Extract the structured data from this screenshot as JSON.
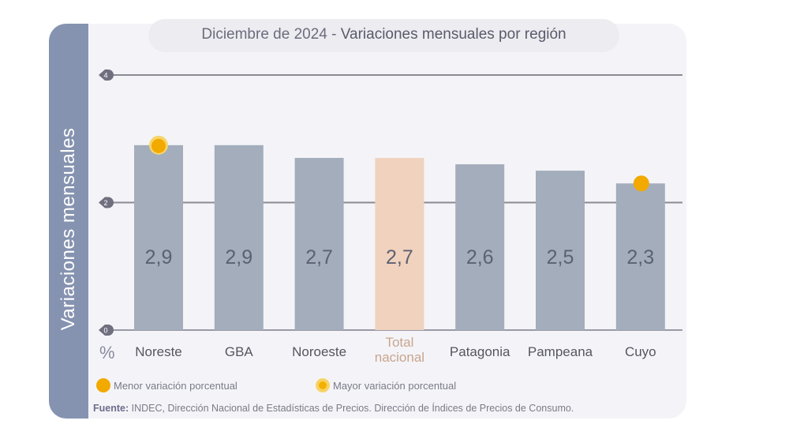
{
  "chart_data": {
    "type": "bar",
    "title_date": "Diciembre de 2024",
    "title_sep": " - ",
    "title_main": "Variaciones mensuales por región",
    "ylabel": "Variaciones  mensuales",
    "yunit": "%",
    "ylim": [
      0,
      4
    ],
    "yticks": [
      "0",
      "2",
      "4"
    ],
    "grid": true,
    "categories": [
      "Noreste",
      "GBA",
      "Noroeste",
      "Total nacional",
      "Patagonia",
      "Pampeana",
      "Cuyo"
    ],
    "values": [
      2.9,
      2.9,
      2.7,
      2.7,
      2.6,
      2.5,
      2.3
    ],
    "value_labels": [
      "2,9",
      "2,9",
      "2,7",
      "2,7",
      "2,6",
      "2,5",
      "2,3"
    ],
    "highlight_category": "Total nacional",
    "markers": {
      "Noreste": "mayor",
      "Cuyo": "menor"
    },
    "colors": {
      "bar": "#a3adbb",
      "highlight": "#f1d2be",
      "marker": "#f2a900",
      "highlight_label": "#c9a58e",
      "axis": "#8593b0"
    },
    "legend": [
      {
        "key": "menor",
        "label": "Menor variación porcentual"
      },
      {
        "key": "mayor",
        "label": "Mayor variación porcentual"
      }
    ],
    "legend_placement": "bottom"
  },
  "source": {
    "label": "Fuente:",
    "text": " INDEC, Dirección Nacional de Estadísticas de Precios. Dirección de Índices de Precios de Consumo."
  }
}
